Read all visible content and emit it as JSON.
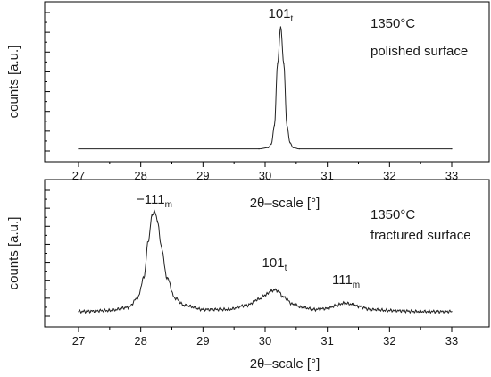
{
  "chart_data": [
    {
      "type": "line",
      "xlabel": "2θ–scale [°]",
      "ylabel": "counts [a.u.]",
      "xlim": [
        27,
        33
      ],
      "x_ticks": [
        "27",
        "28",
        "29",
        "30",
        "31",
        "32",
        "33"
      ],
      "annotation_lines": [
        "1350°C",
        "polished surface"
      ],
      "peaks": [
        {
          "base": "101",
          "sub": "t",
          "x": 30.25,
          "y": 100
        }
      ],
      "series": [
        {
          "x": [
            27.0,
            29.9,
            30.05,
            30.1,
            30.15,
            30.2,
            30.25,
            30.3,
            30.35,
            30.4,
            30.45,
            30.55,
            33.0
          ],
          "y": [
            1,
            1,
            2,
            5,
            20,
            70,
            100,
            70,
            20,
            6,
            2,
            1,
            1
          ]
        }
      ],
      "ylim": [
        0,
        100
      ]
    },
    {
      "type": "line",
      "xlabel": "2θ–scale [°]",
      "ylabel": "counts [a.u.]",
      "xlim": [
        27,
        33
      ],
      "x_ticks": [
        "27",
        "28",
        "29",
        "30",
        "31",
        "32",
        "33"
      ],
      "annotation_lines": [
        "1350°C",
        "fractured surface"
      ],
      "peaks": [
        {
          "base": "−111",
          "sub": "m",
          "x": 28.22,
          "y": 100
        },
        {
          "base": "101",
          "sub": "t",
          "x": 30.15,
          "y": 23
        },
        {
          "base": "111",
          "sub": "m",
          "x": 31.3,
          "y": 10
        }
      ],
      "series": [
        {
          "x": [
            27.0,
            27.5,
            27.8,
            27.95,
            28.05,
            28.12,
            28.18,
            28.22,
            28.27,
            28.33,
            28.42,
            28.55,
            28.7,
            29.0,
            29.4,
            29.7,
            29.9,
            30.0,
            30.1,
            30.15,
            30.2,
            30.3,
            30.45,
            30.6,
            30.8,
            31.0,
            31.15,
            31.25,
            31.3,
            31.4,
            31.5,
            31.7,
            32.0,
            32.5,
            33.0
          ],
          "y": [
            2,
            3,
            6,
            15,
            35,
            70,
            95,
            100,
            90,
            65,
            35,
            15,
            8,
            4,
            4,
            8,
            14,
            18,
            22,
            23,
            22,
            16,
            9,
            6,
            4,
            5,
            8,
            10,
            10,
            9,
            7,
            4,
            3,
            2,
            2
          ]
        }
      ],
      "ylim": [
        0,
        100
      ]
    }
  ]
}
